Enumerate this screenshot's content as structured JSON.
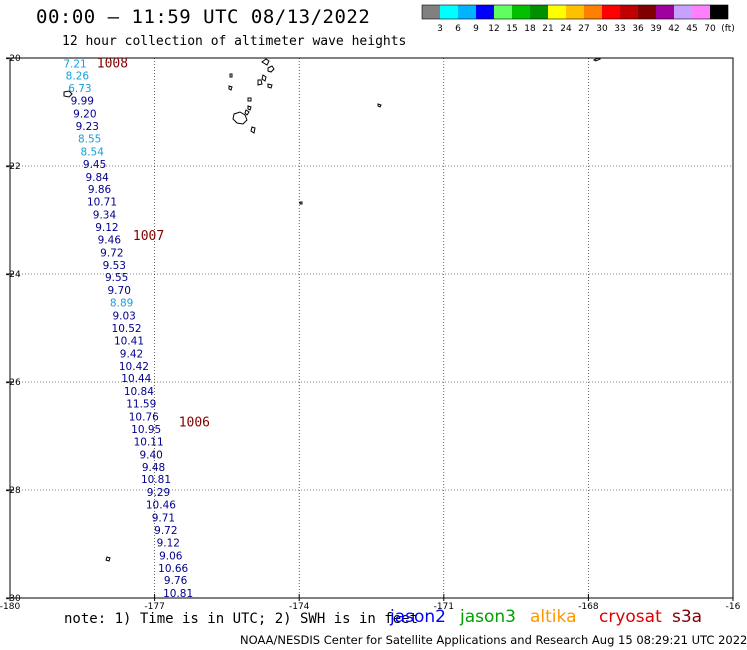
{
  "header": {
    "title": "00:00 – 11:59 UTC 08/13/2022",
    "subtitle": "12 hour collection of altimeter wave heights"
  },
  "legend": {
    "colors": [
      "#808080",
      "#00ffff",
      "#00b4ff",
      "#0000ff",
      "#60ff60",
      "#00c000",
      "#009000",
      "#ffff00",
      "#ffc000",
      "#ff8000",
      "#ff0000",
      "#c00000",
      "#800000",
      "#a000a0",
      "#c8a0ff",
      "#ff80ff",
      "#000000"
    ],
    "labels": [
      "3",
      "6",
      "9",
      "12",
      "15",
      "18",
      "21",
      "24",
      "27",
      "30",
      "33",
      "36",
      "39",
      "42",
      "45",
      "70",
      "(ft)"
    ]
  },
  "map": {
    "lat_ticks": [
      "-20",
      "-22",
      "-24",
      "-26",
      "-28",
      "-30"
    ],
    "lon_ticks": [
      "-180",
      "-177",
      "-174",
      "-171",
      "-168",
      "-16"
    ],
    "lat_range": [
      -30,
      -20
    ],
    "lon_range": [
      -180,
      -165
    ],
    "pressure_labels": [
      {
        "text": "1008",
        "lon": -178.2,
        "lat": -20.1
      },
      {
        "text": "1007",
        "lon": -177.45,
        "lat": -23.3
      },
      {
        "text": "1006",
        "lon": -176.5,
        "lat": -26.75
      }
    ],
    "obs": [
      {
        "v": "7.21",
        "lat": -20.1,
        "c": "#14a0dc"
      },
      {
        "v": "8.26",
        "lat": -20.32,
        "c": "#14a0dc"
      },
      {
        "v": "6.73",
        "lat": -20.56,
        "c": "#14a0dc"
      },
      {
        "v": "9.99",
        "lat": -20.79,
        "c": "#00008c"
      },
      {
        "v": "9.20",
        "lat": -21.03,
        "c": "#00008c"
      },
      {
        "v": "9.23",
        "lat": -21.26,
        "c": "#00008c"
      },
      {
        "v": "8.55",
        "lat": -21.49,
        "c": "#14a0dc"
      },
      {
        "v": "8.54",
        "lat": -21.73,
        "c": "#14a0dc"
      },
      {
        "v": "9.45",
        "lat": -21.96,
        "c": "#00008c"
      },
      {
        "v": "9.84",
        "lat": -22.2,
        "c": "#00008c"
      },
      {
        "v": "9.86",
        "lat": -22.43,
        "c": "#00008c"
      },
      {
        "v": "10.71",
        "lat": -22.66,
        "c": "#00008c"
      },
      {
        "v": "9.34",
        "lat": -22.9,
        "c": "#00008c"
      },
      {
        "v": "9.12",
        "lat": -23.13,
        "c": "#00008c"
      },
      {
        "v": "9.46",
        "lat": -23.36,
        "c": "#00008c"
      },
      {
        "v": "9.72",
        "lat": -23.6,
        "c": "#00008c"
      },
      {
        "v": "9.53",
        "lat": -23.83,
        "c": "#00008c"
      },
      {
        "v": "9.55",
        "lat": -24.06,
        "c": "#00008c"
      },
      {
        "v": "9.70",
        "lat": -24.3,
        "c": "#00008c"
      },
      {
        "v": "8.89",
        "lat": -24.53,
        "c": "#14a0dc"
      },
      {
        "v": "9.03",
        "lat": -24.77,
        "c": "#00008c"
      },
      {
        "v": "10.52",
        "lat": -25.0,
        "c": "#00008c"
      },
      {
        "v": "10.41",
        "lat": -25.23,
        "c": "#00008c"
      },
      {
        "v": "9.42",
        "lat": -25.47,
        "c": "#00008c"
      },
      {
        "v": "10.42",
        "lat": -25.7,
        "c": "#00008c"
      },
      {
        "v": "10.44",
        "lat": -25.93,
        "c": "#00008c"
      },
      {
        "v": "10.84",
        "lat": -26.17,
        "c": "#00008c"
      },
      {
        "v": "11.59",
        "lat": -26.4,
        "c": "#00008c"
      },
      {
        "v": "10.76",
        "lat": -26.64,
        "c": "#00008c"
      },
      {
        "v": "10.95",
        "lat": -26.87,
        "c": "#00008c"
      },
      {
        "v": "10.11",
        "lat": -27.1,
        "c": "#00008c"
      },
      {
        "v": "9.40",
        "lat": -27.34,
        "c": "#00008c"
      },
      {
        "v": "9.48",
        "lat": -27.57,
        "c": "#00008c"
      },
      {
        "v": "10.81",
        "lat": -27.8,
        "c": "#00008c"
      },
      {
        "v": "9.29",
        "lat": -28.04,
        "c": "#00008c"
      },
      {
        "v": "10.46",
        "lat": -28.27,
        "c": "#00008c"
      },
      {
        "v": "9.71",
        "lat": -28.51,
        "c": "#00008c"
      },
      {
        "v": "9.72",
        "lat": -28.74,
        "c": "#00008c"
      },
      {
        "v": "9.12",
        "lat": -28.97,
        "c": "#00008c"
      },
      {
        "v": "9.06",
        "lat": -29.21,
        "c": "#00008c"
      },
      {
        "v": "10.66",
        "lat": -29.44,
        "c": "#00008c"
      },
      {
        "v": "9.76",
        "lat": -29.67,
        "c": "#00008c"
      },
      {
        "v": "10.81",
        "lat": -29.91,
        "c": "#00008c"
      }
    ]
  },
  "footer": {
    "note": "note: 1) Time is in UTC; 2) SWH is in feet",
    "credit": "NOAA/NESDIS Center for Satellite Applications and Research   Aug 15 08:29:21 UTC 2022",
    "satellites": [
      {
        "name": "jason2",
        "color": "#0000ff"
      },
      {
        "name": "jason3",
        "color": "#00a000"
      },
      {
        "name": "altika",
        "color": "#ff9600"
      },
      {
        "name": "cryosat",
        "color": "#e00000"
      },
      {
        "name": "s3a",
        "color": "#800000"
      }
    ]
  }
}
